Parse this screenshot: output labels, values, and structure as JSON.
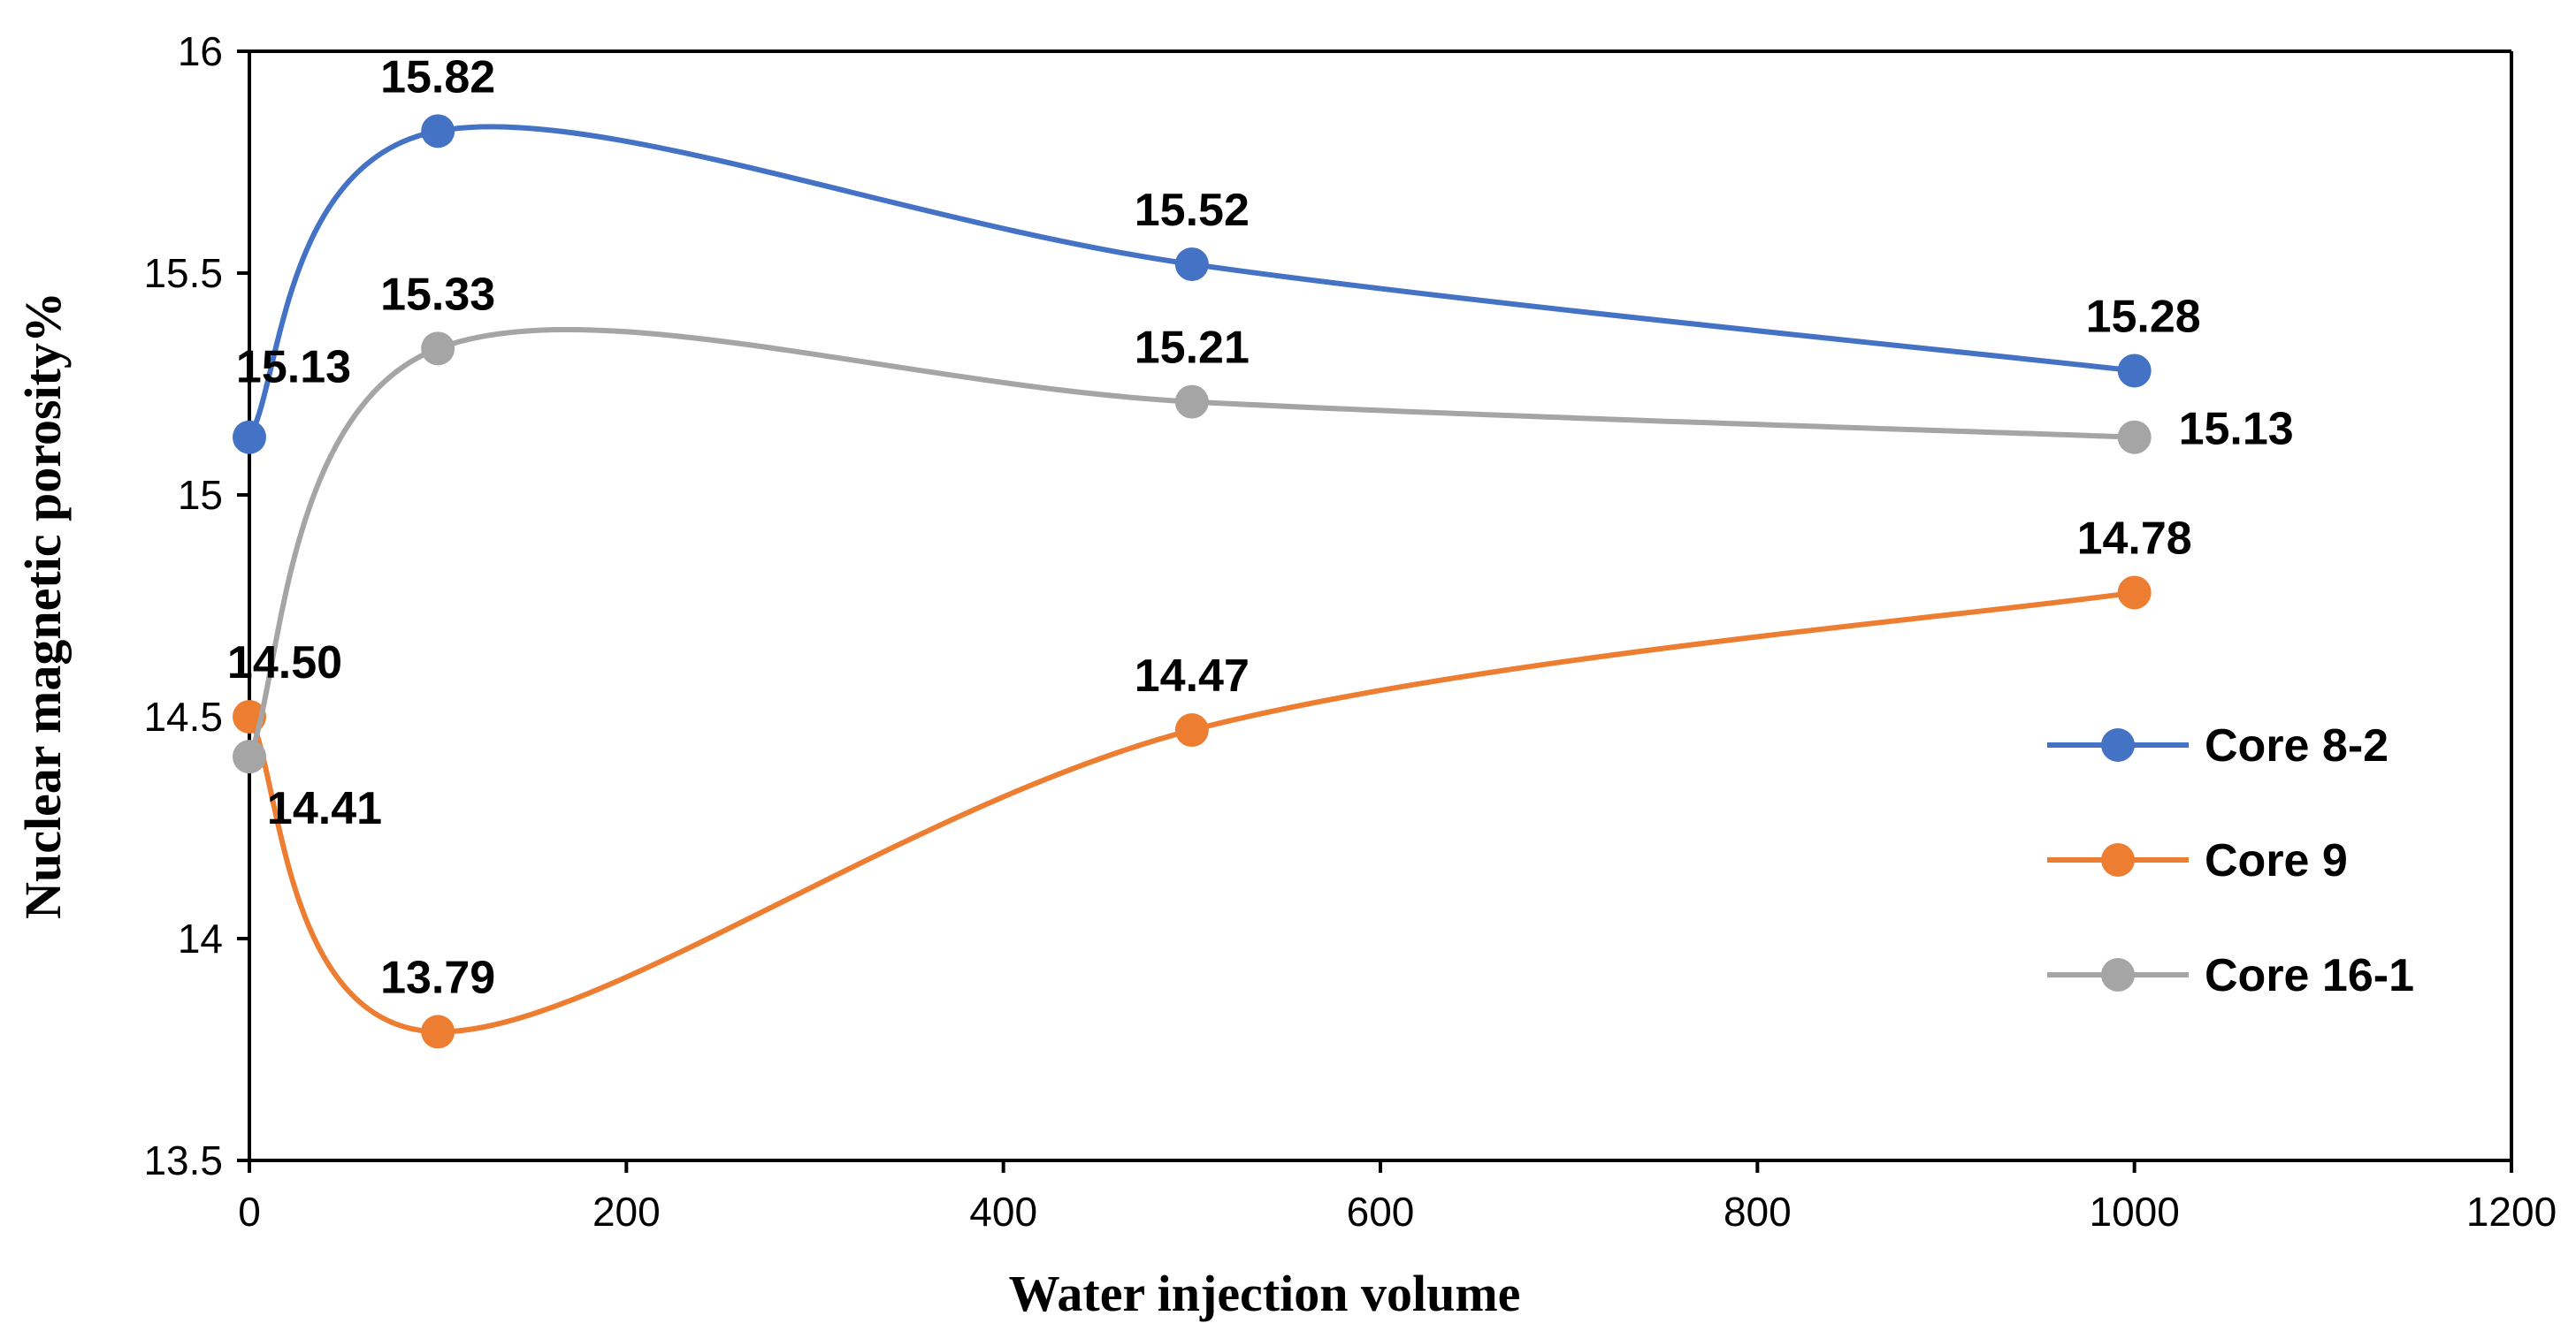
{
  "chart_data": {
    "type": "line",
    "title": "",
    "xlabel": "Water injection volume",
    "ylabel": "Nuclear magnetic porosity%",
    "xlim": [
      0,
      1200
    ],
    "ylim": [
      13.5,
      16
    ],
    "x_ticks": [
      0,
      200,
      400,
      600,
      800,
      1000,
      1200
    ],
    "y_ticks": [
      13.5,
      14,
      14.5,
      15,
      15.5,
      16
    ],
    "x_tick_labels": [
      "0",
      "200",
      "400",
      "600",
      "800",
      "1000",
      "1200"
    ],
    "y_tick_labels": [
      "13.5",
      "14",
      "14.5",
      "15",
      "15.5",
      "16"
    ],
    "grid": false,
    "smooth": true,
    "legend_position": "right",
    "x": [
      0,
      100,
      500,
      1000
    ],
    "series": [
      {
        "name": "Core 8-2",
        "color": "#4472C4",
        "values": [
          15.13,
          15.82,
          15.52,
          15.28
        ],
        "data_labels": [
          "15.13",
          "15.82",
          "15.52",
          "15.28"
        ]
      },
      {
        "name": "Core 9",
        "color": "#ED7D31",
        "values": [
          14.5,
          13.79,
          14.47,
          14.78
        ],
        "data_labels": [
          "14.50",
          "13.79",
          "14.47",
          "14.78"
        ]
      },
      {
        "name": "Core 16-1",
        "color": "#A5A5A5",
        "values": [
          14.41,
          15.33,
          15.21,
          15.13
        ],
        "data_labels": [
          "14.41",
          "15.33",
          "15.21",
          "15.13"
        ]
      }
    ]
  }
}
